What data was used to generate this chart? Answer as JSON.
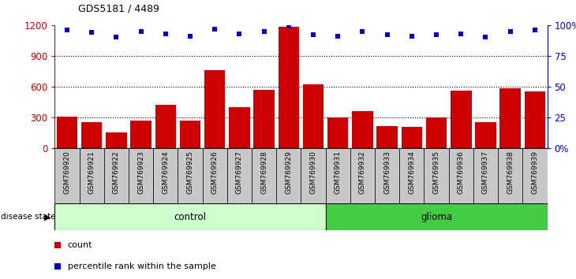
{
  "title": "GDS5181 / 4489",
  "samples": [
    "GSM769920",
    "GSM769921",
    "GSM769922",
    "GSM769923",
    "GSM769924",
    "GSM769925",
    "GSM769926",
    "GSM769927",
    "GSM769928",
    "GSM769929",
    "GSM769930",
    "GSM769931",
    "GSM769932",
    "GSM769933",
    "GSM769934",
    "GSM769935",
    "GSM769936",
    "GSM769937",
    "GSM769938",
    "GSM769939"
  ],
  "counts": [
    305,
    255,
    155,
    270,
    420,
    270,
    760,
    400,
    565,
    1185,
    620,
    300,
    360,
    210,
    205,
    295,
    560,
    255,
    580,
    555
  ],
  "percentiles": [
    96,
    94,
    90,
    95,
    93,
    91,
    97,
    93,
    95,
    99,
    92,
    91,
    95,
    92,
    91,
    92,
    93,
    90,
    95,
    96
  ],
  "n_control": 11,
  "n_glioma": 9,
  "bar_color": "#cc0000",
  "dot_color": "#0000cc",
  "ylim_left": [
    0,
    1200
  ],
  "yticks_left": [
    0,
    300,
    600,
    900,
    1200
  ],
  "grid_lines": [
    300,
    600,
    900
  ],
  "tick_bg_color": "#c8c8c8",
  "control_fill": "#ccffcc",
  "glioma_fill": "#44cc44",
  "disease_label": "disease state",
  "legend_count": "count",
  "legend_percentile": "percentile rank within the sample"
}
